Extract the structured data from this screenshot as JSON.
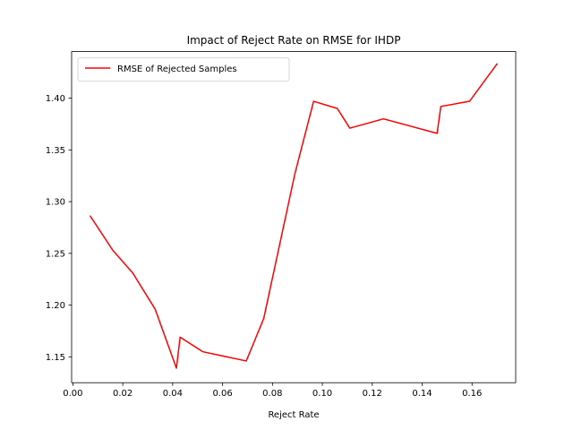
{
  "chart_data": {
    "type": "line",
    "title": "Impact of Reject Rate on RMSE for IHDP",
    "xlabel": "Reject Rate",
    "ylabel": "",
    "xlim": [
      -0.0005,
      0.1775
    ],
    "ylim": [
      1.125,
      1.445
    ],
    "xticks": [
      0.0,
      0.02,
      0.04,
      0.06,
      0.08,
      0.1,
      0.12,
      0.14,
      0.16
    ],
    "xtick_labels": [
      "0.00",
      "0.02",
      "0.04",
      "0.06",
      "0.08",
      "0.10",
      "0.12",
      "0.14",
      "0.16"
    ],
    "yticks": [
      1.15,
      1.2,
      1.25,
      1.3,
      1.35,
      1.4
    ],
    "ytick_labels": [
      "1.15",
      "1.20",
      "1.25",
      "1.30",
      "1.35",
      "1.40"
    ],
    "grid": false,
    "legend_position": "upper-left",
    "series": [
      {
        "name": "RMSE of Rejected Samples",
        "color": "#ff0000",
        "x": [
          0.007,
          0.016,
          0.024,
          0.033,
          0.0415,
          0.043,
          0.052,
          0.0695,
          0.0765,
          0.089,
          0.0965,
          0.106,
          0.111,
          0.1245,
          0.146,
          0.1475,
          0.159,
          0.17
        ],
        "y": [
          1.286,
          1.253,
          1.231,
          1.196,
          1.139,
          1.169,
          1.155,
          1.146,
          1.187,
          1.327,
          1.397,
          1.39,
          1.371,
          1.38,
          1.366,
          1.392,
          1.397,
          1.433
        ]
      }
    ]
  }
}
